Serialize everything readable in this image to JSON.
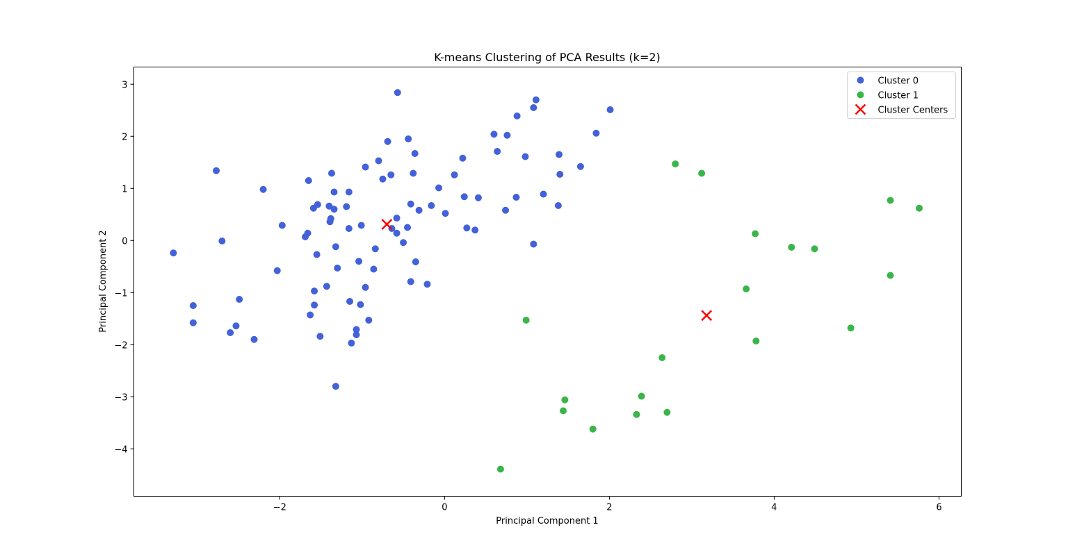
{
  "chart_data": {
    "type": "scatter",
    "title": "K-means Clustering of PCA Results (k=2)",
    "xlabel": "Principal Component 1",
    "ylabel": "Principal Component 2",
    "xlim": [
      -3.77,
      6.27
    ],
    "ylim": [
      -4.91,
      3.33
    ],
    "xticks": [
      -2,
      0,
      2,
      4,
      6
    ],
    "yticks": [
      -4,
      -3,
      -2,
      -1,
      0,
      1,
      2,
      3
    ],
    "xtick_labels": [
      "−2",
      "0",
      "2",
      "4",
      "6"
    ],
    "ytick_labels": [
      "−4",
      "−3",
      "−2",
      "−1",
      "0",
      "1",
      "2",
      "3"
    ],
    "grid": false,
    "legend_position": "top-right",
    "series": [
      {
        "name": "Cluster 0",
        "color": "#4361d8",
        "marker": "circle",
        "points": [
          [
            -3.29,
            -0.24
          ],
          [
            -3.05,
            -1.25
          ],
          [
            -3.05,
            -1.58
          ],
          [
            -2.77,
            1.34
          ],
          [
            -2.7,
            -0.01
          ],
          [
            -2.6,
            -1.77
          ],
          [
            -2.53,
            -1.64
          ],
          [
            -2.49,
            -1.13
          ],
          [
            -2.31,
            -1.9
          ],
          [
            -2.2,
            0.98
          ],
          [
            -2.03,
            -0.58
          ],
          [
            -1.97,
            0.29
          ],
          [
            -1.69,
            0.07
          ],
          [
            -1.66,
            0.14
          ],
          [
            -1.65,
            1.15
          ],
          [
            -1.63,
            -1.43
          ],
          [
            -1.59,
            0.62
          ],
          [
            -1.58,
            -0.97
          ],
          [
            -1.58,
            -1.24
          ],
          [
            -1.55,
            -0.27
          ],
          [
            -1.54,
            0.69
          ],
          [
            -1.51,
            -1.84
          ],
          [
            -1.43,
            -0.88
          ],
          [
            -1.4,
            0.66
          ],
          [
            -1.39,
            0.36
          ],
          [
            -1.38,
            0.42
          ],
          [
            -1.37,
            1.29
          ],
          [
            -1.34,
            0.93
          ],
          [
            -1.34,
            0.6
          ],
          [
            -1.32,
            -0.12
          ],
          [
            -1.32,
            -2.8
          ],
          [
            -1.3,
            -0.53
          ],
          [
            -1.19,
            0.65
          ],
          [
            -1.16,
            0.93
          ],
          [
            -1.16,
            0.23
          ],
          [
            -1.15,
            -1.17
          ],
          [
            -1.13,
            -1.97
          ],
          [
            -1.07,
            -1.71
          ],
          [
            -1.07,
            -1.81
          ],
          [
            -1.04,
            -0.4
          ],
          [
            -1.02,
            -1.23
          ],
          [
            -1.01,
            0.29
          ],
          [
            -0.96,
            1.41
          ],
          [
            -0.96,
            -0.9
          ],
          [
            -0.92,
            -1.53
          ],
          [
            -0.86,
            -0.55
          ],
          [
            -0.84,
            -0.16
          ],
          [
            -0.8,
            1.53
          ],
          [
            -0.75,
            1.18
          ],
          [
            -0.69,
            1.9
          ],
          [
            -0.65,
            1.26
          ],
          [
            -0.64,
            0.23
          ],
          [
            -0.58,
            0.43
          ],
          [
            -0.58,
            0.14
          ],
          [
            -0.57,
            2.84
          ],
          [
            -0.5,
            -0.04
          ],
          [
            -0.45,
            0.25
          ],
          [
            -0.44,
            1.95
          ],
          [
            -0.41,
            0.7
          ],
          [
            -0.41,
            -0.79
          ],
          [
            -0.38,
            1.29
          ],
          [
            -0.36,
            1.67
          ],
          [
            -0.35,
            -0.41
          ],
          [
            -0.31,
            0.58
          ],
          [
            -0.21,
            -0.84
          ],
          [
            -0.16,
            0.67
          ],
          [
            -0.07,
            1.01
          ],
          [
            0.01,
            0.52
          ],
          [
            0.12,
            1.26
          ],
          [
            0.22,
            1.58
          ],
          [
            0.24,
            0.84
          ],
          [
            0.27,
            0.24
          ],
          [
            0.37,
            0.2
          ],
          [
            0.41,
            0.82
          ],
          [
            0.6,
            2.04
          ],
          [
            0.64,
            1.71
          ],
          [
            0.74,
            0.58
          ],
          [
            0.76,
            2.02
          ],
          [
            0.87,
            0.83
          ],
          [
            0.88,
            2.39
          ],
          [
            0.98,
            1.61
          ],
          [
            1.08,
            2.55
          ],
          [
            1.08,
            -0.07
          ],
          [
            1.11,
            2.7
          ],
          [
            1.2,
            0.89
          ],
          [
            1.38,
            0.67
          ],
          [
            1.39,
            1.65
          ],
          [
            1.4,
            1.27
          ],
          [
            1.65,
            1.42
          ],
          [
            1.84,
            2.06
          ],
          [
            2.01,
            2.51
          ]
        ]
      },
      {
        "name": "Cluster 1",
        "color": "#3bb54a",
        "marker": "circle",
        "points": [
          [
            0.68,
            -4.39
          ],
          [
            0.99,
            -1.53
          ],
          [
            1.44,
            -3.27
          ],
          [
            1.46,
            -3.06
          ],
          [
            1.8,
            -3.62
          ],
          [
            2.33,
            -3.34
          ],
          [
            2.39,
            -2.99
          ],
          [
            2.64,
            -2.25
          ],
          [
            2.7,
            -3.3
          ],
          [
            2.8,
            1.47
          ],
          [
            3.12,
            1.29
          ],
          [
            3.66,
            -0.93
          ],
          [
            3.77,
            0.13
          ],
          [
            3.78,
            -1.93
          ],
          [
            4.21,
            -0.13
          ],
          [
            4.49,
            -0.16
          ],
          [
            4.93,
            -1.68
          ],
          [
            5.41,
            0.77
          ],
          [
            5.41,
            -0.67
          ],
          [
            5.76,
            0.62
          ]
        ]
      },
      {
        "name": "Cluster Centers",
        "color": "#ff0000",
        "marker": "x",
        "points": [
          [
            -0.7,
            0.31
          ],
          [
            3.18,
            -1.44
          ]
        ]
      }
    ]
  }
}
